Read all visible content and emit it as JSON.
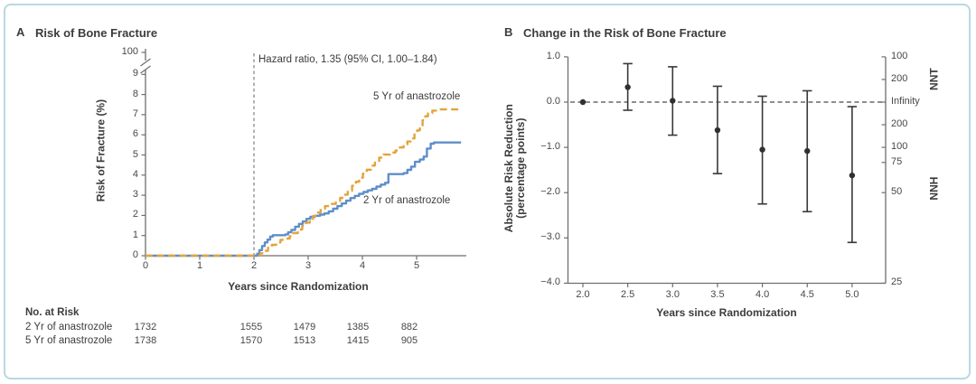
{
  "figure": {
    "border_color": "#b9d8e3",
    "background": "#ffffff"
  },
  "panels": {
    "a": {
      "letter": "A",
      "title": "Risk of Bone Fracture",
      "ylabel": "Risk of Fracture (%)",
      "xlabel": "Years since Randomization",
      "annotation": "Hazard ratio, 1.35 (95% CI, 1.00–1.84)",
      "label_5yr": "5 Yr of anastrozole",
      "label_2yr": "2 Yr of anastrozole"
    },
    "b": {
      "letter": "B",
      "title": "Change in the Risk of Bone Fracture",
      "ylabel_line1": "Absolute Risk Reduction",
      "ylabel_line2": "(percentage points)",
      "xlabel": "Years since Randomization",
      "right_top": "NNT",
      "right_bottom": "NNH"
    }
  },
  "no_at_risk": {
    "header": "No. at Risk",
    "years": [
      0,
      2,
      3,
      4,
      5
    ],
    "rows": [
      {
        "label": "2 Yr of anastrozole",
        "counts": [
          "1732",
          "1555",
          "1479",
          "1385",
          "882"
        ]
      },
      {
        "label": "5 Yr of anastrozole",
        "counts": [
          "1738",
          "1570",
          "1513",
          "1415",
          "905"
        ]
      }
    ]
  },
  "chart_data": [
    {
      "type": "line",
      "panel": "A",
      "title": "Risk of Bone Fracture",
      "xlabel": "Years since Randomization",
      "ylabel": "Risk of Fracture (%)",
      "annotation": "Hazard ratio, 1.35 (95% CI, 1.00–1.84)",
      "xlim": [
        0,
        5.9
      ],
      "ylim": [
        0,
        9.4
      ],
      "grid": false,
      "y_axis_break": {
        "below_tick": "9",
        "top_tick": "100"
      },
      "xticks": [
        "0",
        "1",
        "2",
        "3",
        "4",
        "5"
      ],
      "yticks_lower": [
        "0",
        "1",
        "2",
        "3",
        "4",
        "5",
        "6",
        "7",
        "8",
        "9"
      ],
      "ytick_top": "100",
      "reference_line_x": 2,
      "series": [
        {
          "name": "2 Yr of anastrozole",
          "color": "#5E8EC9",
          "line_style": "solid",
          "points": [
            [
              0,
              0
            ],
            [
              2.02,
              0
            ],
            [
              2.06,
              0.1
            ],
            [
              2.1,
              0.28
            ],
            [
              2.15,
              0.48
            ],
            [
              2.2,
              0.66
            ],
            [
              2.25,
              0.8
            ],
            [
              2.3,
              0.95
            ],
            [
              2.35,
              1.02
            ],
            [
              2.58,
              1.06
            ],
            [
              2.63,
              1.16
            ],
            [
              2.69,
              1.28
            ],
            [
              2.76,
              1.44
            ],
            [
              2.83,
              1.58
            ],
            [
              2.9,
              1.7
            ],
            [
              2.97,
              1.83
            ],
            [
              3.04,
              1.93
            ],
            [
              3.12,
              1.98
            ],
            [
              3.22,
              2.04
            ],
            [
              3.3,
              2.1
            ],
            [
              3.38,
              2.2
            ],
            [
              3.46,
              2.33
            ],
            [
              3.54,
              2.46
            ],
            [
              3.62,
              2.59
            ],
            [
              3.7,
              2.73
            ],
            [
              3.78,
              2.86
            ],
            [
              3.86,
              2.97
            ],
            [
              3.94,
              3.07
            ],
            [
              4.02,
              3.16
            ],
            [
              4.1,
              3.24
            ],
            [
              4.18,
              3.32
            ],
            [
              4.26,
              3.43
            ],
            [
              4.34,
              3.53
            ],
            [
              4.42,
              3.62
            ],
            [
              4.48,
              4.05
            ],
            [
              4.76,
              4.1
            ],
            [
              4.83,
              4.26
            ],
            [
              4.9,
              4.42
            ],
            [
              4.97,
              4.66
            ],
            [
              5.06,
              4.77
            ],
            [
              5.13,
              4.92
            ],
            [
              5.19,
              5.32
            ],
            [
              5.26,
              5.56
            ],
            [
              5.32,
              5.62
            ],
            [
              5.82,
              5.62
            ]
          ]
        },
        {
          "name": "5 Yr of anastrozole",
          "color": "#E3A33C",
          "line_style": "dashed",
          "points": [
            [
              0,
              0
            ],
            [
              2.06,
              0
            ],
            [
              2.12,
              0.12
            ],
            [
              2.19,
              0.24
            ],
            [
              2.26,
              0.4
            ],
            [
              2.33,
              0.54
            ],
            [
              2.41,
              0.66
            ],
            [
              2.49,
              0.79
            ],
            [
              2.57,
              0.85
            ],
            [
              2.66,
              0.97
            ],
            [
              2.73,
              1.12
            ],
            [
              2.81,
              1.3
            ],
            [
              2.89,
              1.47
            ],
            [
              2.96,
              1.64
            ],
            [
              3.03,
              1.82
            ],
            [
              3.09,
              1.97
            ],
            [
              3.16,
              2.14
            ],
            [
              3.23,
              2.32
            ],
            [
              3.31,
              2.46
            ],
            [
              3.41,
              2.57
            ],
            [
              3.51,
              2.72
            ],
            [
              3.59,
              2.87
            ],
            [
              3.66,
              3.03
            ],
            [
              3.73,
              3.22
            ],
            [
              3.81,
              3.47
            ],
            [
              3.88,
              3.67
            ],
            [
              3.94,
              3.87
            ],
            [
              4.01,
              4.07
            ],
            [
              4.08,
              4.27
            ],
            [
              4.16,
              4.47
            ],
            [
              4.23,
              4.62
            ],
            [
              4.31,
              4.87
            ],
            [
              4.39,
              5.02
            ],
            [
              4.51,
              5.12
            ],
            [
              4.61,
              5.22
            ],
            [
              4.69,
              5.37
            ],
            [
              4.76,
              5.52
            ],
            [
              4.83,
              5.67
            ],
            [
              4.89,
              5.82
            ],
            [
              4.96,
              6.02
            ],
            [
              5.01,
              6.22
            ],
            [
              5.06,
              6.47
            ],
            [
              5.11,
              6.72
            ],
            [
              5.16,
              6.92
            ],
            [
              5.21,
              7.07
            ],
            [
              5.29,
              7.2
            ],
            [
              5.36,
              7.26
            ],
            [
              5.82,
              7.26
            ]
          ]
        }
      ]
    },
    {
      "type": "scatter",
      "panel": "B",
      "title": "Change in the Risk of Bone Fracture",
      "xlabel": "Years since Randomization",
      "ylabel": "Absolute Risk Reduction (percentage points)",
      "xlim": [
        1.85,
        5.35
      ],
      "ylim": [
        -4.0,
        1.0
      ],
      "grid": false,
      "zero_reference_line": true,
      "x": [
        2.0,
        2.5,
        3.0,
        3.5,
        4.0,
        4.5,
        5.0
      ],
      "y": [
        0.0,
        0.33,
        0.03,
        -0.62,
        -1.05,
        -1.08,
        -1.62
      ],
      "ci_low": [
        0.0,
        -0.18,
        -0.73,
        -1.58,
        -2.25,
        -2.42,
        -3.1
      ],
      "ci_high": [
        0.0,
        0.85,
        0.78,
        0.35,
        0.13,
        0.25,
        -0.1
      ],
      "marker": {
        "shape": "circle",
        "color": "#303030"
      },
      "xticks": [
        "2.0",
        "2.5",
        "3.0",
        "3.5",
        "4.0",
        "4.5",
        "5.0"
      ],
      "yticks": [
        {
          "value": 1.0,
          "label": "1.0"
        },
        {
          "value": 0.0,
          "label": "0.0"
        },
        {
          "value": -1.0,
          "label": "−1.0"
        },
        {
          "value": -2.0,
          "label": "−2.0"
        },
        {
          "value": -3.0,
          "label": "−3.0"
        },
        {
          "value": -4.0,
          "label": "−4.0"
        }
      ],
      "right_axis": {
        "top_label": "NNT",
        "bottom_label": "NNH",
        "ticks": [
          {
            "value": 1.0,
            "label": "100"
          },
          {
            "value": 0.5,
            "label": "200"
          },
          {
            "value": 0.0,
            "label": "Infinity"
          },
          {
            "value": -0.5,
            "label": "200"
          },
          {
            "value": -1.0,
            "label": "100"
          },
          {
            "value": -1.3333,
            "label": "75"
          },
          {
            "value": -2.0,
            "label": "50"
          },
          {
            "value": -4.0,
            "label": "25"
          }
        ]
      }
    }
  ]
}
